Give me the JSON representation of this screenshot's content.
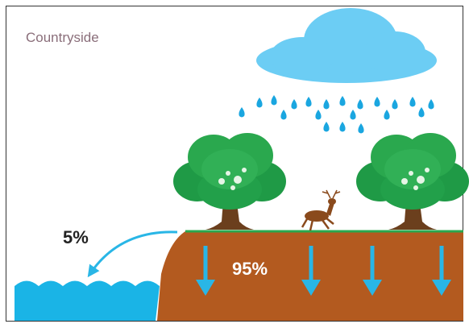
{
  "title": "Countryside",
  "labels": {
    "runoff": "5%",
    "infiltration": "95%"
  }
}
